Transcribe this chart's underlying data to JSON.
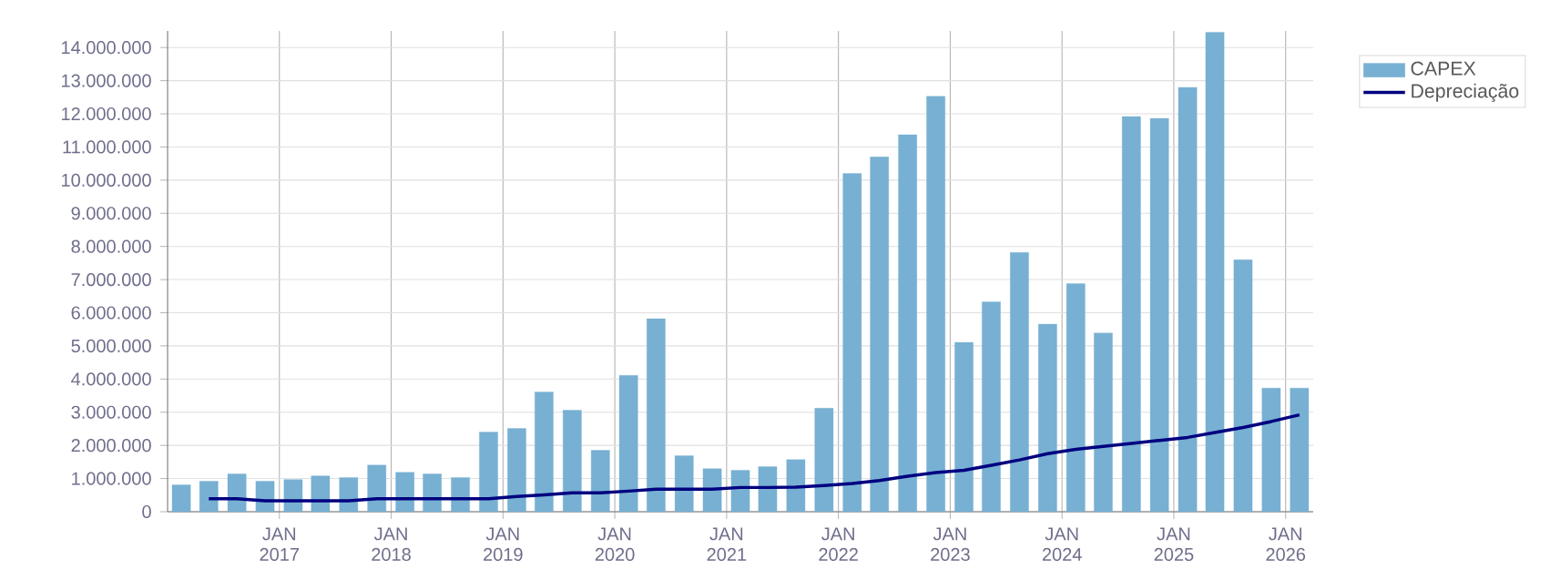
{
  "chart_data": {
    "type": "bar",
    "x": [
      "2016-02-15",
      "2016-05-15",
      "2016-08-15",
      "2016-11-15",
      "2017-02-15",
      "2017-05-15",
      "2017-08-15",
      "2017-11-15",
      "2018-02-15",
      "2018-05-15",
      "2018-08-15",
      "2018-11-15",
      "2019-02-15",
      "2019-05-15",
      "2019-08-15",
      "2019-11-15",
      "2020-02-15",
      "2020-05-15",
      "2020-08-15",
      "2020-11-15",
      "2021-02-15",
      "2021-05-15",
      "2021-08-15",
      "2021-11-15",
      "2022-02-15",
      "2022-05-15",
      "2022-08-15",
      "2022-11-15",
      "2023-02-15",
      "2023-05-15",
      "2023-08-15",
      "2023-11-15",
      "2024-02-15",
      "2024-05-15",
      "2024-08-15",
      "2024-11-15",
      "2025-02-15",
      "2025-05-15",
      "2025-08-15",
      "2025-11-15",
      "2026-02-15"
    ],
    "series": [
      {
        "name": "CAPEX",
        "color": "#77b0d2",
        "values": [
          810000,
          920000,
          1140000,
          920000,
          970000,
          1080000,
          1030000,
          1410000,
          1190000,
          1140000,
          1030000,
          2400000,
          2510000,
          3610000,
          3060000,
          1850000,
          4110000,
          5820000,
          1690000,
          1300000,
          1250000,
          1360000,
          1570000,
          3120000,
          10200000,
          10700000,
          11370000,
          12530000,
          5110000,
          6330000,
          7820000,
          5660000,
          6880000,
          5390000,
          11920000,
          11860000,
          12800000,
          14460000,
          7600000,
          3730000,
          3730000
        ]
      },
      {
        "name": "Depreciação",
        "type": "line",
        "color": "#000080",
        "values": [
          null,
          390000,
          390000,
          330000,
          330000,
          330000,
          330000,
          390000,
          390000,
          390000,
          390000,
          390000,
          460000,
          510000,
          570000,
          570000,
          620000,
          680000,
          680000,
          680000,
          730000,
          730000,
          740000,
          790000,
          850000,
          940000,
          1070000,
          1180000,
          1250000,
          1400000,
          1560000,
          1750000,
          1880000,
          1970000,
          2060000,
          2150000,
          2240000,
          2390000,
          2540000,
          2720000,
          2920000
        ]
      }
    ],
    "xlim": [
      "2016-01-01",
      "2026-04-01"
    ],
    "xticks": [
      {
        "value": "2017-01-01",
        "label": "JAN 2017"
      },
      {
        "value": "2018-01-01",
        "label": "JAN 2018"
      },
      {
        "value": "2019-01-01",
        "label": "JAN 2019"
      },
      {
        "value": "2020-01-01",
        "label": "JAN 2020"
      },
      {
        "value": "2021-01-01",
        "label": "JAN 2021"
      },
      {
        "value": "2022-01-01",
        "label": "JAN 2022"
      },
      {
        "value": "2023-01-01",
        "label": "JAN 2023"
      },
      {
        "value": "2024-01-01",
        "label": "JAN 2024"
      },
      {
        "value": "2025-01-01",
        "label": "JAN 2025"
      },
      {
        "value": "2026-01-01",
        "label": "JAN 2026"
      }
    ],
    "ylim": [
      0,
      14500000
    ],
    "yticks": [
      {
        "value": 0,
        "label": "0"
      },
      {
        "value": 1000000,
        "label": "1.000.000"
      },
      {
        "value": 2000000,
        "label": "2.000.000"
      },
      {
        "value": 3000000,
        "label": "3.000.000"
      },
      {
        "value": 4000000,
        "label": "4.000.000"
      },
      {
        "value": 5000000,
        "label": "5.000.000"
      },
      {
        "value": 6000000,
        "label": "6.000.000"
      },
      {
        "value": 7000000,
        "label": "7.000.000"
      },
      {
        "value": 8000000,
        "label": "8.000.000"
      },
      {
        "value": 9000000,
        "label": "9.000.000"
      },
      {
        "value": 10000000,
        "label": "10.000.000"
      },
      {
        "value": 11000000,
        "label": "11.000.000"
      },
      {
        "value": 12000000,
        "label": "12.000.000"
      },
      {
        "value": 13000000,
        "label": "13.000.000"
      },
      {
        "value": 14000000,
        "label": "14.000.000"
      }
    ],
    "grid": true,
    "legend": "top right",
    "marker": "none",
    "line_style": "solid"
  }
}
